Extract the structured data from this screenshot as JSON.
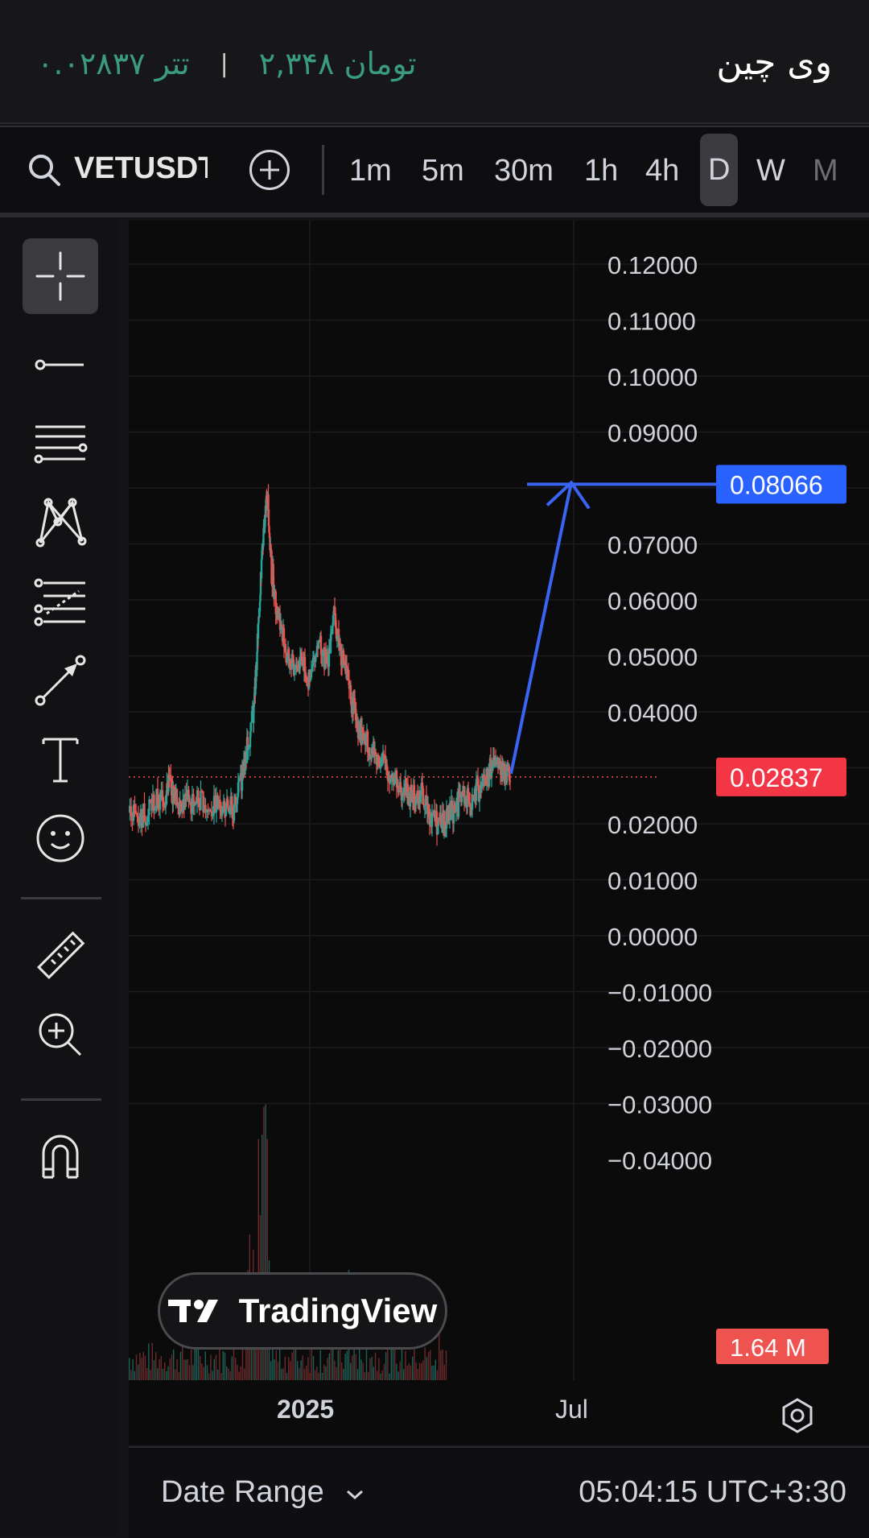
{
  "header": {
    "coin_name": "وی چین",
    "price_toman": "۲,۳۴۸ تومان",
    "separator": "|",
    "price_tether": "۰.۰۲۸۳۷ تتر"
  },
  "toolbar": {
    "symbol": "VETUSDT",
    "timeframes": [
      "1m",
      "5m",
      "30m",
      "1h",
      "4h",
      "D",
      "W",
      "M"
    ],
    "active_timeframe": "D"
  },
  "left_tools": [
    "crosshair-icon",
    "trend-line-icon",
    "parallel-lines-icon",
    "pattern-icon",
    "fib-icon",
    "arrow-line-icon",
    "text-icon",
    "emoji-icon",
    "ruler-icon",
    "zoom-in-icon",
    "magnet-icon"
  ],
  "chart_data": {
    "type": "candlestick",
    "symbol": "VETUSDT",
    "y_axis_ticks": [
      "0.12000",
      "0.11000",
      "0.10000",
      "0.09000",
      "0.07000",
      "0.06000",
      "0.05000",
      "0.04000",
      "0.02000",
      "0.01000",
      "0.00000",
      "−0.01000",
      "−0.02000",
      "−0.03000",
      "−0.04000"
    ],
    "ylim": [
      -0.04,
      0.125
    ],
    "x_axis_labels": [
      "2025",
      "Jul"
    ],
    "current_price": "0.02837",
    "target_price": "0.08066",
    "volume_label": "1.64 M",
    "price_path": [
      [
        0,
        0.0222
      ],
      [
        0.03,
        0.0215
      ],
      [
        0.06,
        0.0232
      ],
      [
        0.09,
        0.0248
      ],
      [
        0.1,
        0.0275
      ],
      [
        0.115,
        0.0245
      ],
      [
        0.14,
        0.0238
      ],
      [
        0.17,
        0.024
      ],
      [
        0.2,
        0.0228
      ],
      [
        0.23,
        0.0235
      ],
      [
        0.25,
        0.0215
      ],
      [
        0.27,
        0.025
      ],
      [
        0.29,
        0.032
      ],
      [
        0.31,
        0.039
      ],
      [
        0.315,
        0.046
      ],
      [
        0.325,
        0.059
      ],
      [
        0.335,
        0.072
      ],
      [
        0.345,
        0.079
      ],
      [
        0.355,
        0.065
      ],
      [
        0.37,
        0.058
      ],
      [
        0.39,
        0.051
      ],
      [
        0.41,
        0.047
      ],
      [
        0.43,
        0.05
      ],
      [
        0.45,
        0.045
      ],
      [
        0.47,
        0.053
      ],
      [
        0.49,
        0.048
      ],
      [
        0.51,
        0.057
      ],
      [
        0.53,
        0.05
      ],
      [
        0.55,
        0.043
      ],
      [
        0.57,
        0.038
      ],
      [
        0.59,
        0.034
      ],
      [
        0.61,
        0.033
      ],
      [
        0.63,
        0.031
      ],
      [
        0.65,
        0.029
      ],
      [
        0.67,
        0.027
      ],
      [
        0.69,
        0.026
      ],
      [
        0.71,
        0.024
      ],
      [
        0.73,
        0.025
      ],
      [
        0.75,
        0.022
      ],
      [
        0.77,
        0.02
      ],
      [
        0.79,
        0.021
      ],
      [
        0.81,
        0.023
      ],
      [
        0.83,
        0.025
      ],
      [
        0.85,
        0.024
      ],
      [
        0.87,
        0.026
      ],
      [
        0.89,
        0.028
      ],
      [
        0.91,
        0.031
      ],
      [
        0.93,
        0.029
      ],
      [
        0.95,
        0.0284
      ]
    ]
  },
  "footer": {
    "date_range_label": "Date Range",
    "clock": "05:04:15 UTC+3:30"
  },
  "watermark": "TradingView",
  "colors": {
    "up": "#26a69a",
    "down": "#ef5350",
    "target_tag": "#2962ff",
    "current_tag": "#f23645",
    "drawing": "#3a64f2"
  }
}
